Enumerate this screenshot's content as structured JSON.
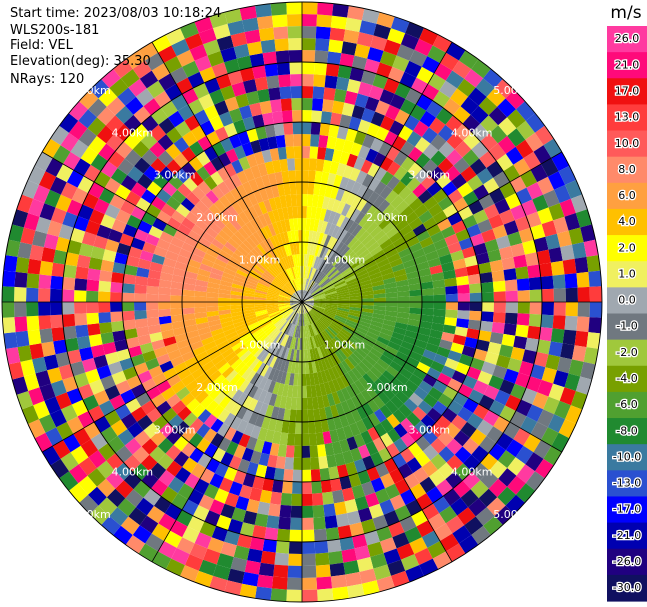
{
  "header": {
    "start_time": "Start time: 2023/08/03 10:18:24",
    "instrument": "WLS200s-181",
    "field": "Field: VEL",
    "elevation": "Elevation(deg): 35.30",
    "nrays": "NRays: 120"
  },
  "colorbar": {
    "unit": "m/s",
    "ticks": [
      "26.0",
      "21.0",
      "17.0",
      "13.0",
      "10.0",
      "8.0",
      "6.0",
      "4.0",
      "2.0",
      "1.0",
      "0.0",
      "-1.0",
      "-2.0",
      "-4.0",
      "-6.0",
      "-8.0",
      "-10.0",
      "-13.0",
      "-17.0",
      "-21.0",
      "-26.0",
      "-30.0"
    ],
    "colors": [
      "#ff3aa0",
      "#ff0a7a",
      "#f01010",
      "#ff3c3c",
      "#ff5a5a",
      "#ff8a6a",
      "#ffa040",
      "#ffc000",
      "#ffff00",
      "#f0f060",
      "#a0a8b0",
      "#707880",
      "#a0c83c",
      "#78a000",
      "#50a030",
      "#208a30",
      "#3a7aa0",
      "#2a50d0",
      "#0000ff",
      "#0000b0",
      "#200080",
      "#101060"
    ]
  },
  "chart_data": {
    "type": "heatmap",
    "projection": "polar PPI (plan position indicator)",
    "field": "VEL",
    "units": "m/s",
    "nrays": 120,
    "elevation_deg": 35.3,
    "range_ring_labels": [
      "1.00km",
      "2.00km",
      "3.00km",
      "4.00km",
      "5.00km"
    ],
    "pattern": "Near-range coherent radial-velocity dipole: positive (yellow/orange/salmon, +2 to +8 m/s) toward the west and north, negative (green, -1 to -8 m/s) toward the east and south, grey zero line running SW–NE; beyond roughly 3 km the field is noise with random colors spanning the full scale."
  }
}
